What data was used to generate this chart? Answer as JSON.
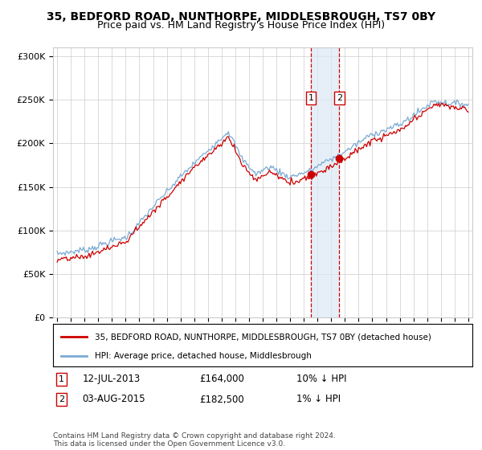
{
  "title": "35, BEDFORD ROAD, NUNTHORPE, MIDDLESBROUGH, TS7 0BY",
  "subtitle": "Price paid vs. HM Land Registry's House Price Index (HPI)",
  "hpi_label": "HPI: Average price, detached house, Middlesbrough",
  "property_label": "35, BEDFORD ROAD, NUNTHORPE, MIDDLESBROUGH, TS7 0BY (detached house)",
  "hpi_color": "#7aaad4",
  "property_color": "#cc0000",
  "sale1_date_num": 2013.53,
  "sale2_date_num": 2015.59,
  "sale1_price": 164000,
  "sale2_price": 182500,
  "annotation_bg": "#dce9f5",
  "annotation_border": "#cc0000",
  "ylim": [
    0,
    310000
  ],
  "xlim_start": 1994.7,
  "xlim_end": 2025.3,
  "footer": "Contains HM Land Registry data © Crown copyright and database right 2024.\nThis data is licensed under the Open Government Licence v3.0.",
  "title_fontsize": 10,
  "subtitle_fontsize": 9,
  "tick_fontsize": 8,
  "ylabel_vals": [
    0,
    50000,
    100000,
    150000,
    200000,
    250000,
    300000
  ],
  "ylabel_labels": [
    "£0",
    "£50K",
    "£100K",
    "£150K",
    "£200K",
    "£250K",
    "£300K"
  ],
  "sale1_date_str": "12-JUL-2013",
  "sale2_date_str": "03-AUG-2015",
  "sale1_price_str": "£164,000",
  "sale2_price_str": "£182,500",
  "sale1_pct_str": "10% ↓ HPI",
  "sale2_pct_str": "1% ↓ HPI"
}
